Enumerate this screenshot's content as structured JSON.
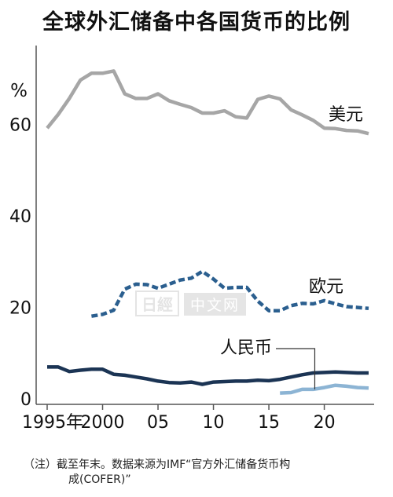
{
  "chart_data": {
    "type": "line",
    "title": "全球外汇储备中各国货币的比例",
    "ylabel": "%",
    "ylim": [
      0,
      75
    ],
    "xlim": [
      1995,
      2024
    ],
    "y_ticks": [
      0,
      20,
      40,
      60
    ],
    "x_ticks": [
      {
        "value": 1995,
        "label": "1995年"
      },
      {
        "value": 2000,
        "label": "2000"
      },
      {
        "value": 2005,
        "label": "05"
      },
      {
        "value": 2010,
        "label": "10"
      },
      {
        "value": 2015,
        "label": "15"
      },
      {
        "value": 2020,
        "label": "20"
      }
    ],
    "grid": false,
    "series": [
      {
        "name": "美元",
        "color": "#a6a6a6",
        "style": "solid",
        "x": [
          1995,
          1996,
          1997,
          1998,
          1999,
          2000,
          2001,
          2002,
          2003,
          2004,
          2005,
          2006,
          2007,
          2008,
          2009,
          2010,
          2011,
          2012,
          2013,
          2014,
          2015,
          2016,
          2017,
          2018,
          2019,
          2020,
          2021,
          2022,
          2023,
          2024
        ],
        "values": [
          59,
          62,
          65.5,
          69.5,
          71,
          71,
          71.5,
          66.5,
          65.5,
          65.5,
          66.5,
          65,
          64.2,
          63.5,
          62.3,
          62.3,
          62.8,
          61.5,
          61.2,
          65.3,
          66,
          65.4,
          63,
          61.9,
          60.7,
          59,
          58.9,
          58.5,
          58.4,
          57.8
        ]
      },
      {
        "name": "欧元",
        "color": "#2b5f8f",
        "style": "dashed",
        "x": [
          1999,
          2000,
          2001,
          2002,
          2003,
          2004,
          2005,
          2006,
          2007,
          2008,
          2009,
          2010,
          2011,
          2012,
          2013,
          2014,
          2015,
          2016,
          2017,
          2018,
          2019,
          2020,
          2021,
          2022,
          2023,
          2024
        ],
        "values": [
          17.9,
          18.3,
          19.2,
          23.8,
          24.9,
          24.8,
          24,
          24.9,
          25.8,
          26.2,
          27.7,
          26,
          24,
          24.2,
          24.2,
          21.2,
          19.1,
          19.1,
          20.2,
          20.7,
          20.6,
          21.3,
          20.6,
          20,
          19.8,
          19.6
        ]
      },
      {
        "name": "人民币",
        "color": "#8cb4d4",
        "style": "solid",
        "x": [
          2016,
          2017,
          2018,
          2019,
          2020,
          2021,
          2022,
          2023,
          2024
        ],
        "values": [
          1.1,
          1.2,
          1.9,
          1.9,
          2.3,
          2.8,
          2.6,
          2.3,
          2.2
        ]
      },
      {
        "name": "",
        "color": "#1b3454",
        "style": "solid",
        "x": [
          1995,
          1996,
          1997,
          1998,
          1999,
          2000,
          2001,
          2002,
          2003,
          2004,
          2005,
          2006,
          2007,
          2008,
          2009,
          2010,
          2011,
          2012,
          2013,
          2014,
          2015,
          2016,
          2017,
          2018,
          2019,
          2020,
          2021,
          2022,
          2023,
          2024
        ],
        "values": [
          6.8,
          6.8,
          5.8,
          6.1,
          6.3,
          6.3,
          5.2,
          5.0,
          4.6,
          4.2,
          3.7,
          3.4,
          3.3,
          3.5,
          3.0,
          3.5,
          3.6,
          3.7,
          3.7,
          3.9,
          3.8,
          4.1,
          4.6,
          5.1,
          5.5,
          5.6,
          5.7,
          5.6,
          5.5,
          5.5
        ]
      }
    ],
    "annotations": [
      {
        "text": "美元",
        "series": 0
      },
      {
        "text": "欧元",
        "series": 1
      },
      {
        "text": "人民币",
        "series": 2
      }
    ],
    "footnote": [
      "（注）截至年末。数据来源为IMF“官方外汇储备货币构",
      "成(COFER)”"
    ]
  },
  "watermark": {
    "logo": "日經",
    "text": "中文网"
  }
}
